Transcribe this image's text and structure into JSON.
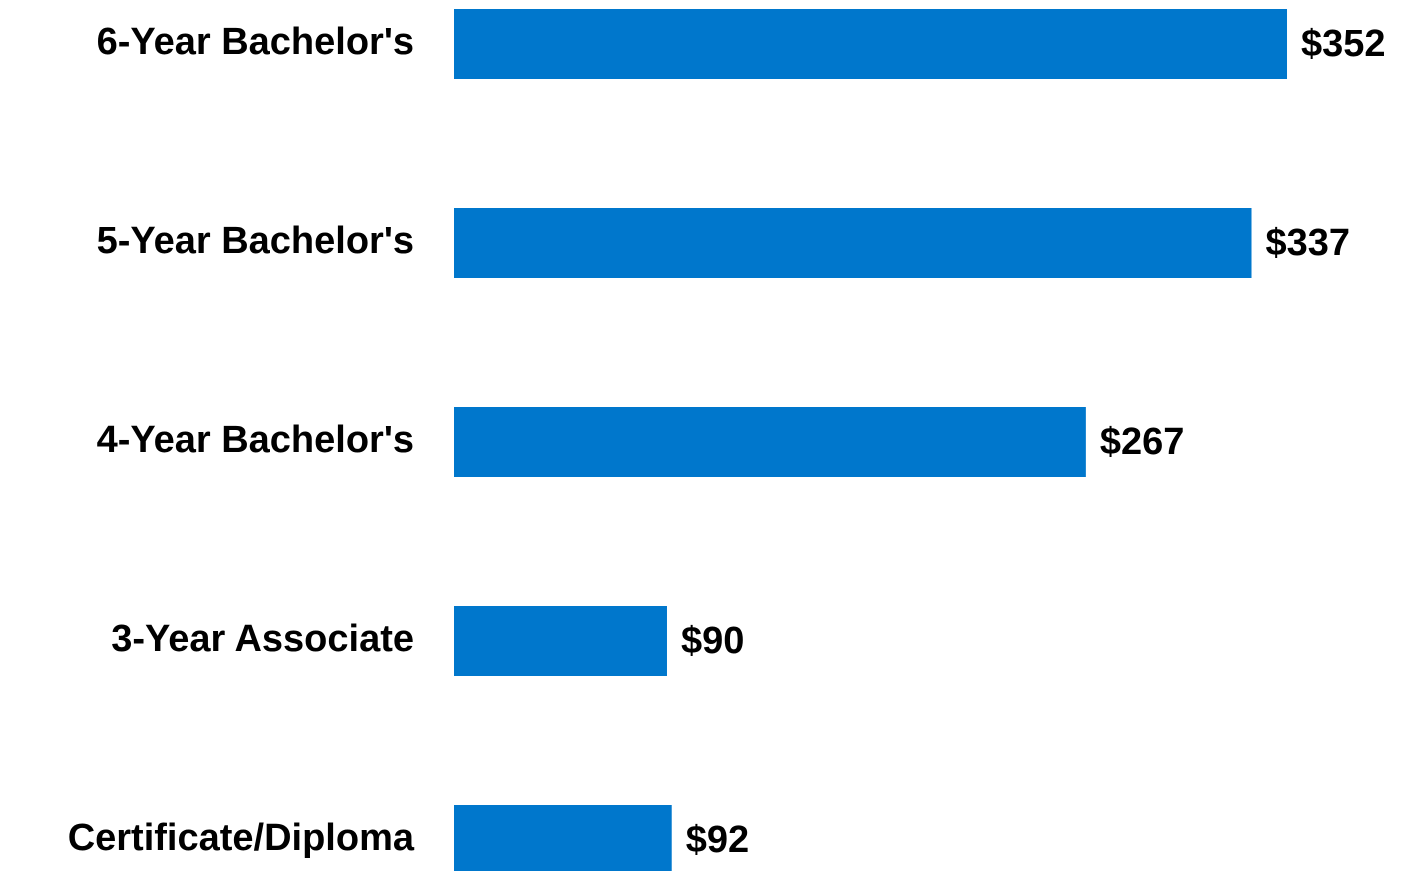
{
  "chart_data": {
    "type": "bar",
    "orientation": "horizontal",
    "categories": [
      "6-Year Bachelor's",
      "5-Year Bachelor's",
      "4-Year Bachelor's",
      "3-Year Associate",
      "Certificate/Diploma"
    ],
    "values": [
      352,
      337,
      267,
      90,
      92
    ],
    "value_labels": [
      "$352",
      "$337",
      "$267",
      "$90",
      "$92"
    ],
    "color": "#0077cc"
  }
}
